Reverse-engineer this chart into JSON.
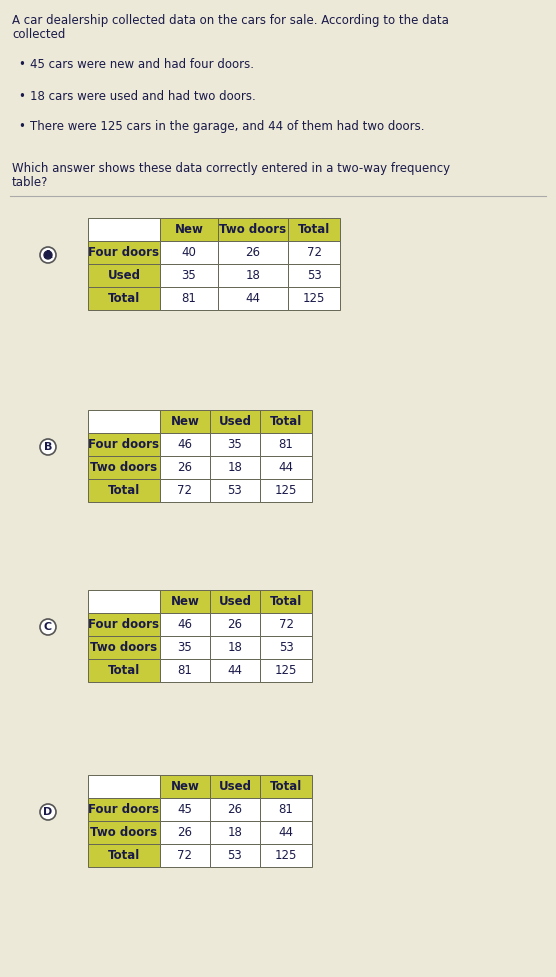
{
  "bg_color": "#ede9d8",
  "header_color": "#c8cc3a",
  "row_label_color": "#c8cc3a",
  "cell_color": "#ffffff",
  "border_color": "#666655",
  "text_color": "#1a1a4a",
  "title_line1": "A car dealership collected data on the cars for sale. According to the data",
  "title_line2": "collected",
  "bullets": [
    "45 cars were new and had four doors.",
    "18 cars were used and had two doors.",
    "There were 125 cars in the garage, and 44 of them had two doors."
  ],
  "question_line1": "Which answer shows these data correctly entered in a two-way frequency",
  "question_line2": "table?",
  "options": [
    {
      "label": "A",
      "selected": true,
      "headers": [
        "",
        "New",
        "Two doors",
        "Total"
      ],
      "rows": [
        [
          "Four doors",
          "40",
          "26",
          "72"
        ],
        [
          "Used",
          "35",
          "18",
          "53"
        ],
        [
          "Total",
          "81",
          "44",
          "125"
        ]
      ]
    },
    {
      "label": "B",
      "selected": false,
      "headers": [
        "",
        "New",
        "Used",
        "Total"
      ],
      "rows": [
        [
          "Four doors",
          "46",
          "35",
          "81"
        ],
        [
          "Two doors",
          "26",
          "18",
          "44"
        ],
        [
          "Total",
          "72",
          "53",
          "125"
        ]
      ]
    },
    {
      "label": "C",
      "selected": false,
      "headers": [
        "",
        "New",
        "Used",
        "Total"
      ],
      "rows": [
        [
          "Four doors",
          "46",
          "26",
          "72"
        ],
        [
          "Two doors",
          "35",
          "18",
          "53"
        ],
        [
          "Total",
          "81",
          "44",
          "125"
        ]
      ]
    },
    {
      "label": "D",
      "selected": false,
      "headers": [
        "",
        "New",
        "Used",
        "Total"
      ],
      "rows": [
        [
          "Four doors",
          "45",
          "26",
          "81"
        ],
        [
          "Two doors",
          "26",
          "18",
          "44"
        ],
        [
          "Total",
          "72",
          "53",
          "125"
        ]
      ]
    }
  ]
}
